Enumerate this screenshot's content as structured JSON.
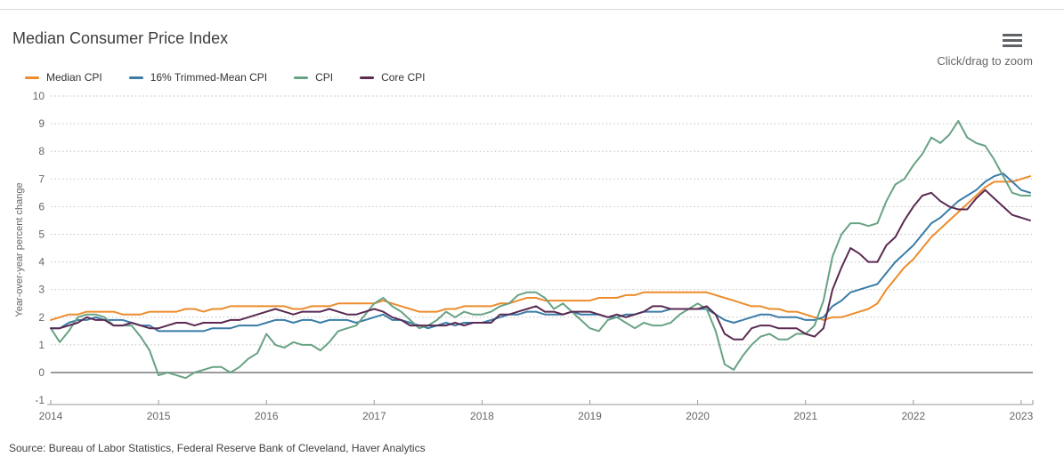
{
  "title": "Median Consumer Price Index",
  "zoom_hint": "Click/drag to zoom",
  "source": "Source: Bureau of Labor Statistics, Federal Reserve Bank of Cleveland, Haver Analytics",
  "menu_icon": "hamburger-icon",
  "colors": {
    "grid": "#bfbfbf",
    "zero_line": "#9a9a9a",
    "axis_line": "#999999",
    "tick_text": "#666666",
    "title_text": "#3d3d3d"
  },
  "chart_data": {
    "type": "line",
    "title": "Median Consumer Price Index",
    "xlabel": "",
    "ylabel": "Year-over-year percent change",
    "ylim": [
      -1,
      10
    ],
    "y_ticks": [
      -1,
      0,
      1,
      2,
      3,
      4,
      5,
      6,
      7,
      8,
      9,
      10
    ],
    "x_ticks": [
      "2014",
      "2015",
      "2016",
      "2017",
      "2018",
      "2019",
      "2020",
      "2021",
      "2022",
      "2023"
    ],
    "x_start": "2014-01",
    "x_end": "2023-02",
    "frequency": "monthly",
    "grid": "dotted-horizontal",
    "legend_position": "top-left",
    "series": [
      {
        "name": "Median CPI",
        "color": "#ED8C2B",
        "values": [
          1.9,
          2.0,
          2.1,
          2.1,
          2.2,
          2.2,
          2.2,
          2.2,
          2.1,
          2.1,
          2.1,
          2.2,
          2.2,
          2.2,
          2.2,
          2.3,
          2.3,
          2.2,
          2.3,
          2.3,
          2.4,
          2.4,
          2.4,
          2.4,
          2.4,
          2.4,
          2.4,
          2.3,
          2.3,
          2.4,
          2.4,
          2.4,
          2.5,
          2.5,
          2.5,
          2.5,
          2.5,
          2.6,
          2.5,
          2.4,
          2.3,
          2.2,
          2.2,
          2.2,
          2.3,
          2.3,
          2.4,
          2.4,
          2.4,
          2.4,
          2.5,
          2.5,
          2.6,
          2.7,
          2.7,
          2.6,
          2.6,
          2.6,
          2.6,
          2.6,
          2.6,
          2.7,
          2.7,
          2.7,
          2.8,
          2.8,
          2.9,
          2.9,
          2.9,
          2.9,
          2.9,
          2.9,
          2.9,
          2.9,
          2.8,
          2.7,
          2.6,
          2.5,
          2.4,
          2.4,
          2.3,
          2.3,
          2.2,
          2.2,
          2.1,
          2.0,
          1.9,
          2.0,
          2.0,
          2.1,
          2.2,
          2.3,
          2.5,
          3.0,
          3.4,
          3.8,
          4.1,
          4.5,
          4.9,
          5.2,
          5.5,
          5.8,
          6.1,
          6.4,
          6.7,
          6.9,
          6.9,
          6.9,
          7.0,
          7.1
        ]
      },
      {
        "name": "16% Trimmed-Mean CPI",
        "color": "#3A7CA8",
        "values": [
          1.6,
          1.6,
          1.8,
          1.9,
          1.9,
          2.0,
          1.9,
          1.9,
          1.9,
          1.8,
          1.7,
          1.7,
          1.5,
          1.5,
          1.5,
          1.5,
          1.5,
          1.5,
          1.6,
          1.6,
          1.6,
          1.7,
          1.7,
          1.7,
          1.8,
          1.9,
          1.9,
          1.8,
          1.9,
          1.9,
          1.8,
          1.9,
          1.9,
          1.9,
          1.8,
          1.9,
          2.0,
          2.1,
          1.9,
          1.9,
          1.8,
          1.7,
          1.6,
          1.7,
          1.8,
          1.7,
          1.8,
          1.8,
          1.8,
          1.9,
          2.0,
          2.1,
          2.1,
          2.2,
          2.2,
          2.1,
          2.1,
          2.1,
          2.2,
          2.1,
          2.1,
          2.1,
          2.0,
          2.0,
          2.1,
          2.1,
          2.2,
          2.2,
          2.2,
          2.3,
          2.3,
          2.3,
          2.3,
          2.3,
          2.1,
          1.9,
          1.8,
          1.9,
          2.0,
          2.1,
          2.1,
          2.0,
          2.0,
          2.0,
          1.9,
          1.9,
          2.0,
          2.4,
          2.6,
          2.9,
          3.0,
          3.1,
          3.2,
          3.6,
          4.0,
          4.3,
          4.6,
          5.0,
          5.4,
          5.6,
          5.9,
          6.2,
          6.4,
          6.6,
          6.9,
          7.1,
          7.2,
          6.9,
          6.6,
          6.5
        ]
      },
      {
        "name": "CPI",
        "color": "#68A284",
        "values": [
          1.6,
          1.1,
          1.5,
          2.0,
          2.1,
          2.1,
          2.0,
          1.7,
          1.7,
          1.7,
          1.3,
          0.8,
          -0.1,
          0.0,
          -0.1,
          -0.2,
          0.0,
          0.1,
          0.2,
          0.2,
          0.0,
          0.2,
          0.5,
          0.7,
          1.4,
          1.0,
          0.9,
          1.1,
          1.0,
          1.0,
          0.8,
          1.1,
          1.5,
          1.6,
          1.7,
          2.1,
          2.5,
          2.7,
          2.4,
          2.2,
          1.9,
          1.6,
          1.7,
          1.9,
          2.2,
          2.0,
          2.2,
          2.1,
          2.1,
          2.2,
          2.4,
          2.5,
          2.8,
          2.9,
          2.9,
          2.7,
          2.3,
          2.5,
          2.2,
          1.9,
          1.6,
          1.5,
          1.9,
          2.0,
          1.8,
          1.6,
          1.8,
          1.7,
          1.7,
          1.8,
          2.1,
          2.3,
          2.5,
          2.3,
          1.5,
          0.3,
          0.1,
          0.6,
          1.0,
          1.3,
          1.4,
          1.2,
          1.2,
          1.4,
          1.4,
          1.7,
          2.6,
          4.2,
          5.0,
          5.4,
          5.4,
          5.3,
          5.4,
          6.2,
          6.8,
          7.0,
          7.5,
          7.9,
          8.5,
          8.3,
          8.6,
          9.1,
          8.5,
          8.3,
          8.2,
          7.7,
          7.1,
          6.5,
          6.4,
          6.4
        ]
      },
      {
        "name": "Core CPI",
        "color": "#5A2A52",
        "values": [
          1.6,
          1.6,
          1.7,
          1.8,
          2.0,
          1.9,
          1.9,
          1.7,
          1.7,
          1.8,
          1.7,
          1.6,
          1.6,
          1.7,
          1.8,
          1.8,
          1.7,
          1.8,
          1.8,
          1.8,
          1.9,
          1.9,
          2.0,
          2.1,
          2.2,
          2.3,
          2.2,
          2.1,
          2.2,
          2.2,
          2.2,
          2.3,
          2.2,
          2.1,
          2.1,
          2.2,
          2.3,
          2.2,
          2.0,
          1.9,
          1.7,
          1.7,
          1.7,
          1.7,
          1.7,
          1.8,
          1.7,
          1.8,
          1.8,
          1.8,
          2.1,
          2.1,
          2.2,
          2.3,
          2.4,
          2.2,
          2.2,
          2.1,
          2.2,
          2.2,
          2.2,
          2.1,
          2.0,
          2.1,
          2.0,
          2.1,
          2.2,
          2.4,
          2.4,
          2.3,
          2.3,
          2.3,
          2.3,
          2.4,
          2.1,
          1.4,
          1.2,
          1.2,
          1.6,
          1.7,
          1.7,
          1.6,
          1.6,
          1.6,
          1.4,
          1.3,
          1.6,
          3.0,
          3.8,
          4.5,
          4.3,
          4.0,
          4.0,
          4.6,
          4.9,
          5.5,
          6.0,
          6.4,
          6.5,
          6.2,
          6.0,
          5.9,
          5.9,
          6.3,
          6.6,
          6.3,
          6.0,
          5.7,
          5.6,
          5.5
        ]
      }
    ]
  }
}
